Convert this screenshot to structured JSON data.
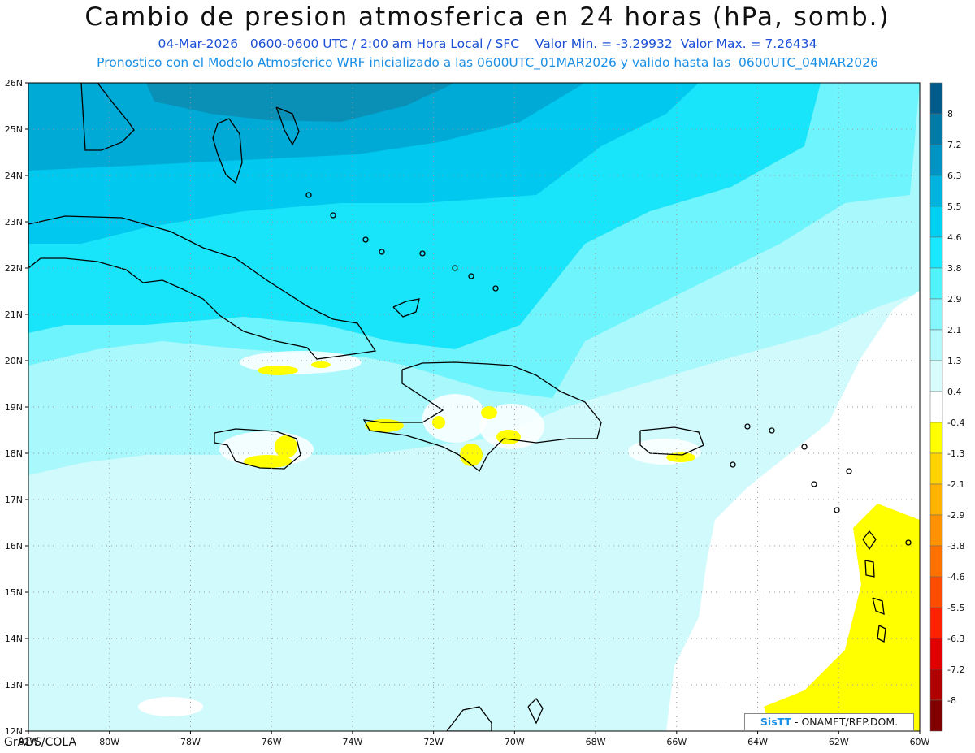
{
  "header": {
    "title": "Cambio de presion atmosferica en 24 horas (hPa, somb.)",
    "line1": "04-Mar-2026   0600-0600 UTC / 2:00 am Hora Local / SFC    Valor Min. = -3.29932  Valor Max. = 7.26434",
    "line2": "Pronostico con el Modelo Atmosferico WRF inicializado a las 0600UTC_01MAR2026 y valido hasta las  0600UTC_04MAR2026"
  },
  "map": {
    "lon_range": [
      -82,
      -60
    ],
    "lat_range": [
      12,
      26
    ],
    "lat_labels": [
      "26N",
      "25N",
      "24N",
      "23N",
      "22N",
      "21N",
      "20N",
      "19N",
      "18N",
      "17N",
      "16N",
      "15N",
      "14N",
      "13N",
      "12N"
    ],
    "lon_labels": [
      "82W",
      "80W",
      "78W",
      "76W",
      "74W",
      "72W",
      "70W",
      "68W",
      "66W",
      "64W",
      "62W",
      "60W"
    ]
  },
  "legend": {
    "levels": [
      "8",
      "7.2",
      "6.3",
      "5.5",
      "4.6",
      "3.8",
      "2.9",
      "2.1",
      "1.3",
      "0.4",
      "-0.4",
      "-1.3",
      "-2.1",
      "-2.9",
      "-3.8",
      "-4.6",
      "-5.5",
      "-6.3",
      "-7.2",
      "-8"
    ],
    "colors": [
      "#005a8a",
      "#007aa6",
      "#0094c4",
      "#00b4e0",
      "#00d0f2",
      "#1ae8ff",
      "#50f2fc",
      "#84f6fc",
      "#b4fafc",
      "#d8fcfc",
      "#ffffff",
      "#ffff00",
      "#ffd200",
      "#ffb200",
      "#ff9200",
      "#ff7200",
      "#ff4c00",
      "#ff2200",
      "#e00000",
      "#b00000",
      "#800000"
    ]
  },
  "field_colors": {
    "c_very_high": "#0a8fb6",
    "c_high": "#00aad6",
    "c_mid_high": "#00c8ee",
    "c_mid": "#18e4fa",
    "c_mid_low": "#6ef4fc",
    "c_low": "#a8f8fc",
    "c_lower": "#d0fafc",
    "c_zero": "#ffffff",
    "c_neg": "#ffff00",
    "coast": "#000000",
    "grid": "#999999"
  },
  "footer": {
    "credit": "GrADS/COLA",
    "brand_a": "SisTT",
    "brand_b": " - ONAMET/REP.DOM."
  }
}
